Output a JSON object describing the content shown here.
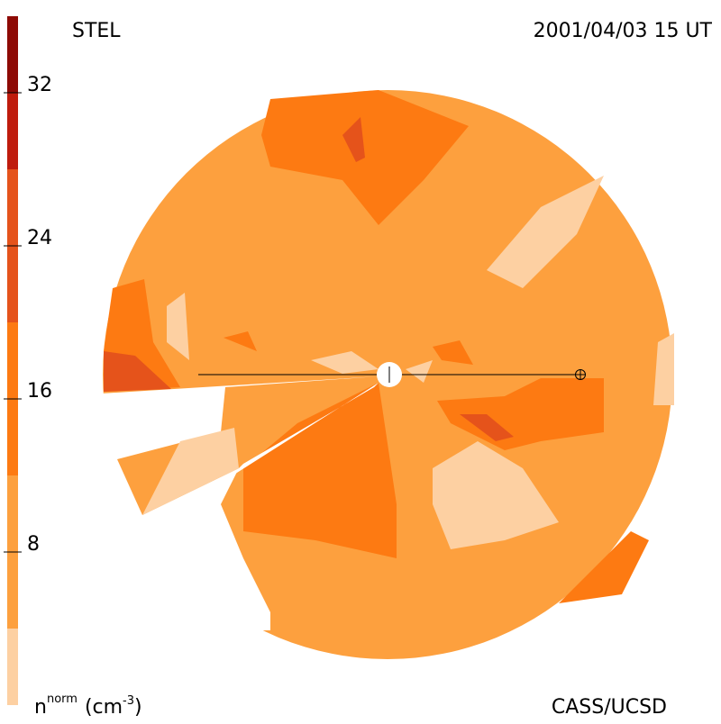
{
  "header": {
    "title": "STEL",
    "timestamp": "2001/04/03 15 UT",
    "credit": "CASS/UCSD"
  },
  "colorbar": {
    "label": {
      "base": "n",
      "sup": "norm",
      "unit": "(cm",
      "unit_sup": "-3",
      "close": ")"
    },
    "lim": [
      0,
      36
    ],
    "ticks": [
      8,
      16,
      24,
      32
    ],
    "bands": [
      {
        "from": 0,
        "to": 4,
        "color": "#fdd0a2"
      },
      {
        "from": 4,
        "to": 12,
        "color": "#fda03e"
      },
      {
        "from": 12,
        "to": 20,
        "color": "#fd7a12"
      },
      {
        "from": 20,
        "to": 28,
        "color": "#e5531b"
      },
      {
        "from": 28,
        "to": 32,
        "color": "#bf1c0d"
      },
      {
        "from": 32,
        "to": 36,
        "color": "#8e0a05"
      }
    ]
  }
}
